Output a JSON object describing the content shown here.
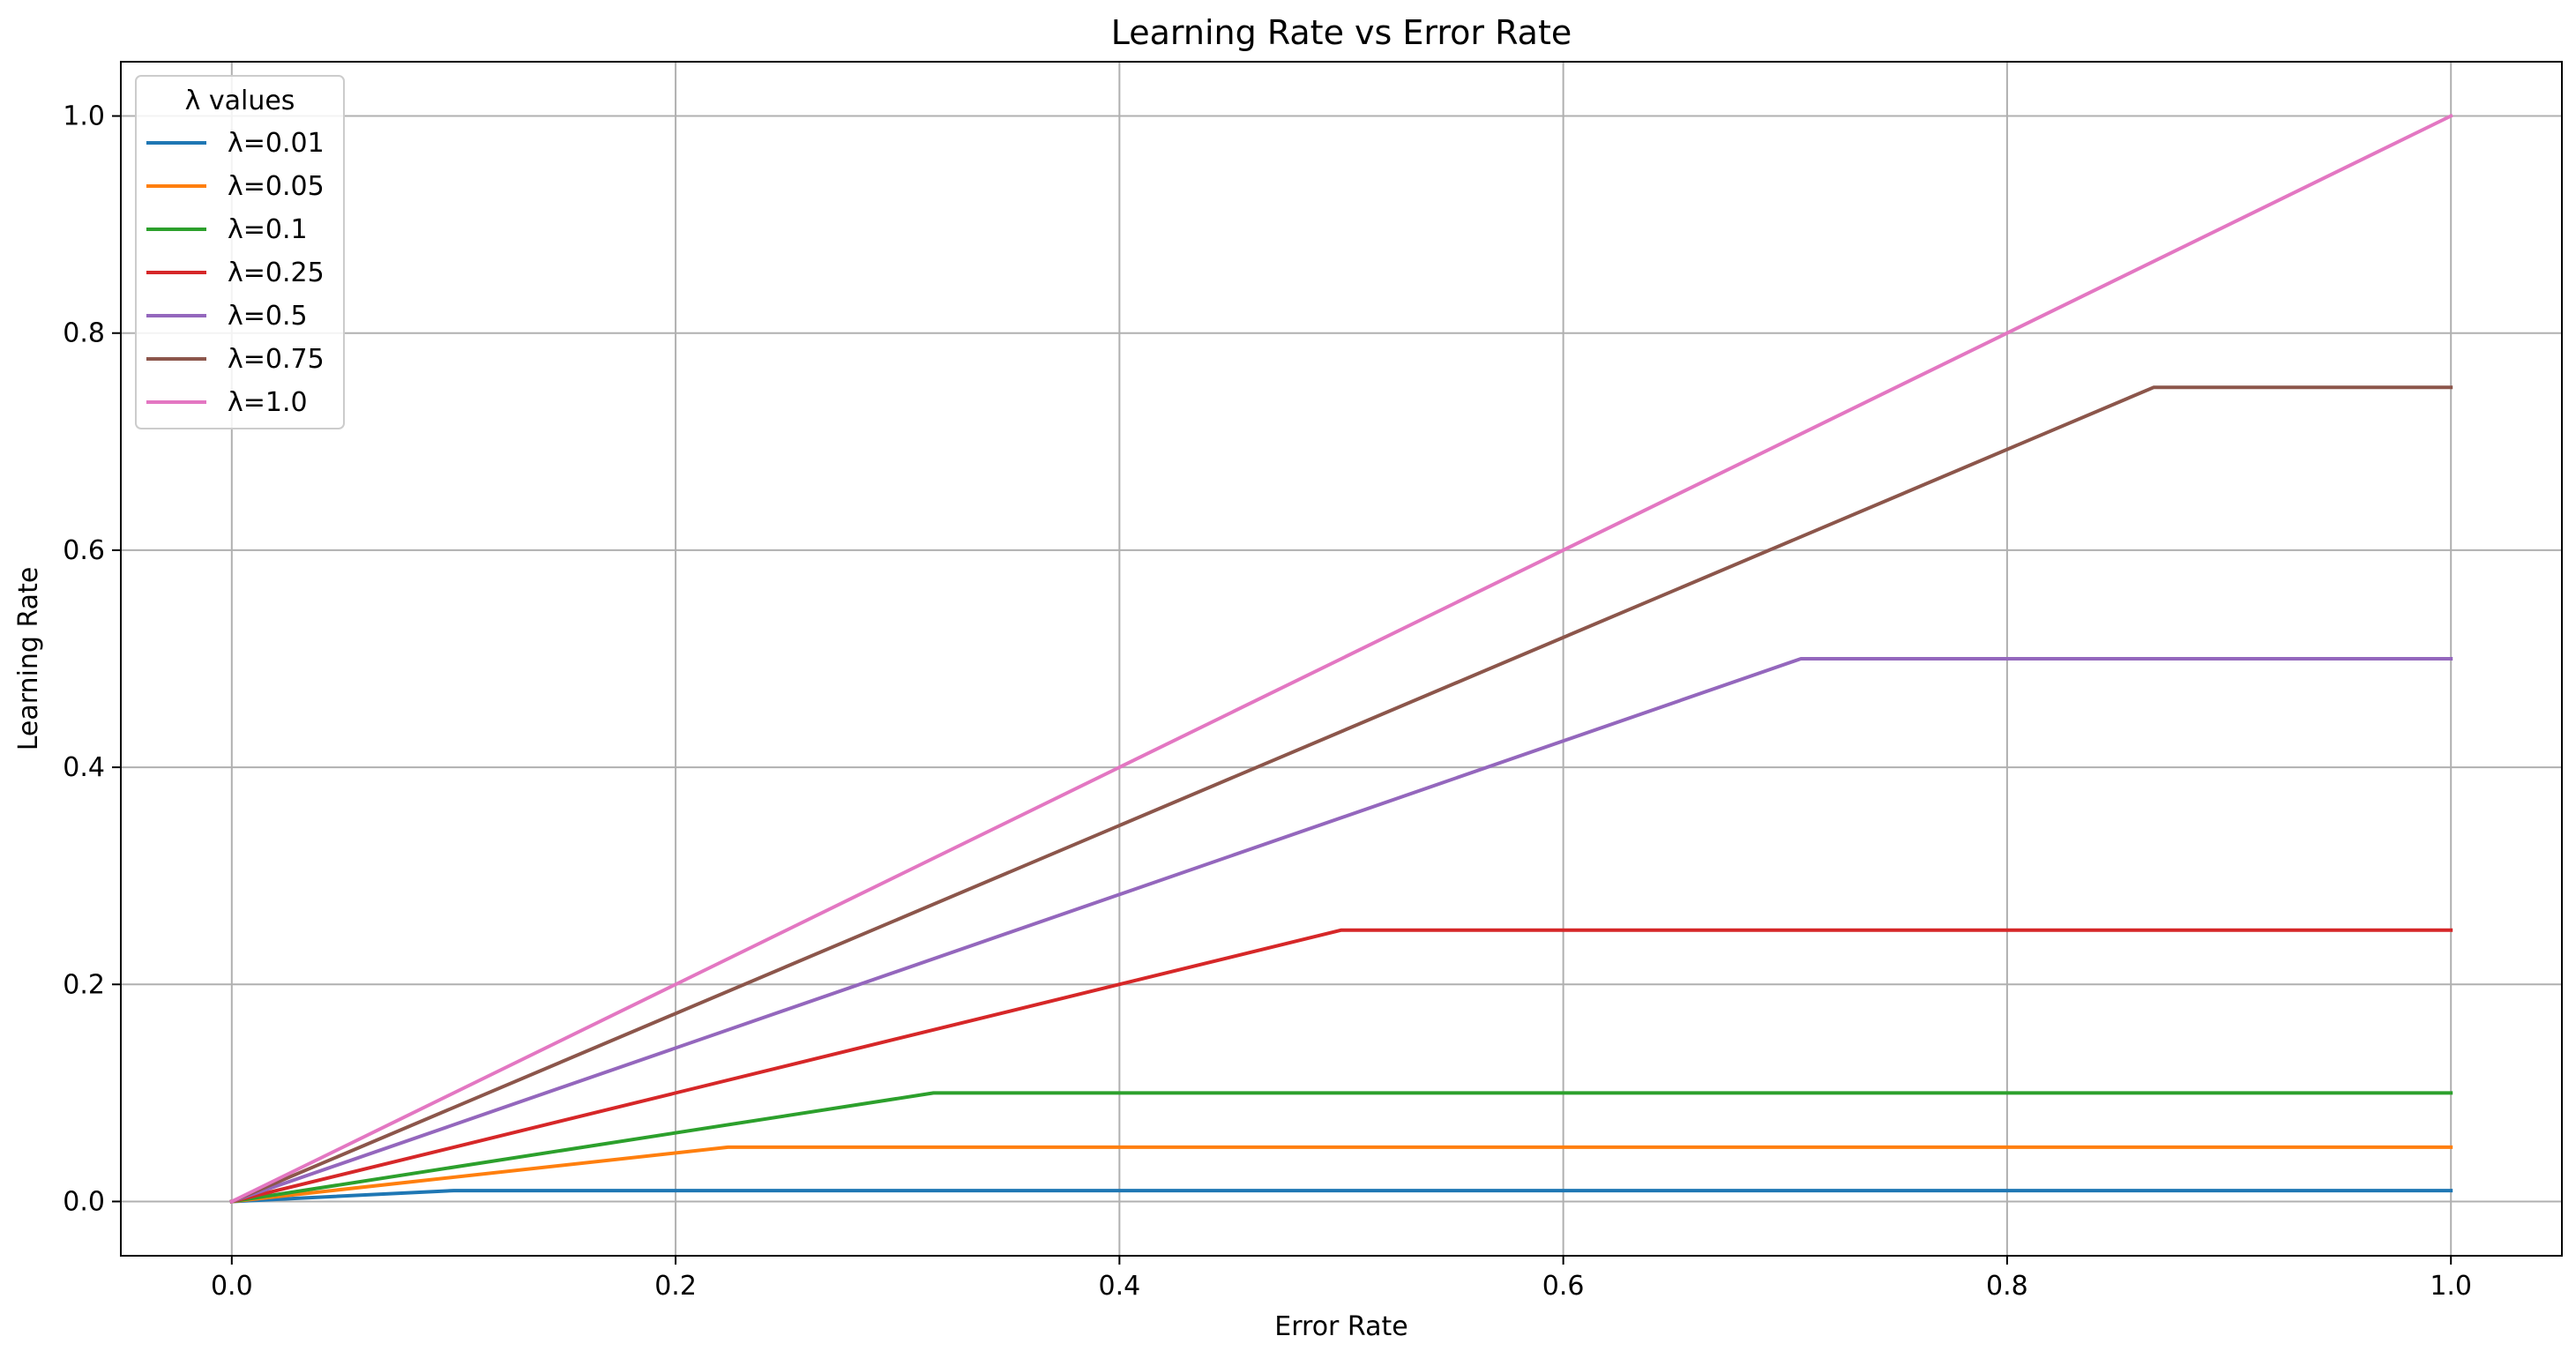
{
  "chart_data": {
    "type": "line",
    "title": "Learning Rate vs Error Rate",
    "xlabel": "Error Rate",
    "ylabel": "Learning Rate",
    "xlim": [
      -0.05,
      1.05
    ],
    "ylim": [
      -0.05,
      1.05
    ],
    "xticks": [
      0.0,
      0.2,
      0.4,
      0.6,
      0.8,
      1.0
    ],
    "yticks": [
      0.0,
      0.2,
      0.4,
      0.6,
      0.8,
      1.0
    ],
    "xtick_labels": [
      "0.0",
      "0.2",
      "0.4",
      "0.6",
      "0.8",
      "1.0"
    ],
    "ytick_labels": [
      "0.0",
      "0.2",
      "0.4",
      "0.6",
      "0.8",
      "1.0"
    ],
    "grid": true,
    "legend": {
      "title": "λ values",
      "placement": "top-left"
    },
    "series": [
      {
        "name": "λ=0.01",
        "color": "#1f77b4",
        "x": [
          0.0,
          0.1,
          1.0
        ],
        "y": [
          0.0,
          0.01,
          0.01
        ]
      },
      {
        "name": "λ=0.05",
        "color": "#ff7f0e",
        "x": [
          0.0,
          0.2236,
          1.0
        ],
        "y": [
          0.0,
          0.05,
          0.05
        ]
      },
      {
        "name": "λ=0.1",
        "color": "#2ca02c",
        "x": [
          0.0,
          0.3162,
          1.0
        ],
        "y": [
          0.0,
          0.1,
          0.1
        ]
      },
      {
        "name": "λ=0.25",
        "color": "#d62728",
        "x": [
          0.0,
          0.5,
          1.0
        ],
        "y": [
          0.0,
          0.25,
          0.25
        ]
      },
      {
        "name": "λ=0.5",
        "color": "#9467bd",
        "x": [
          0.0,
          0.7071,
          1.0
        ],
        "y": [
          0.0,
          0.5,
          0.5
        ]
      },
      {
        "name": "λ=0.75",
        "color": "#8c564b",
        "x": [
          0.0,
          0.866,
          1.0
        ],
        "y": [
          0.0,
          0.75,
          0.75
        ]
      },
      {
        "name": "λ=1.0",
        "color": "#e377c2",
        "x": [
          0.0,
          1.0
        ],
        "y": [
          0.0,
          1.0
        ]
      }
    ]
  }
}
